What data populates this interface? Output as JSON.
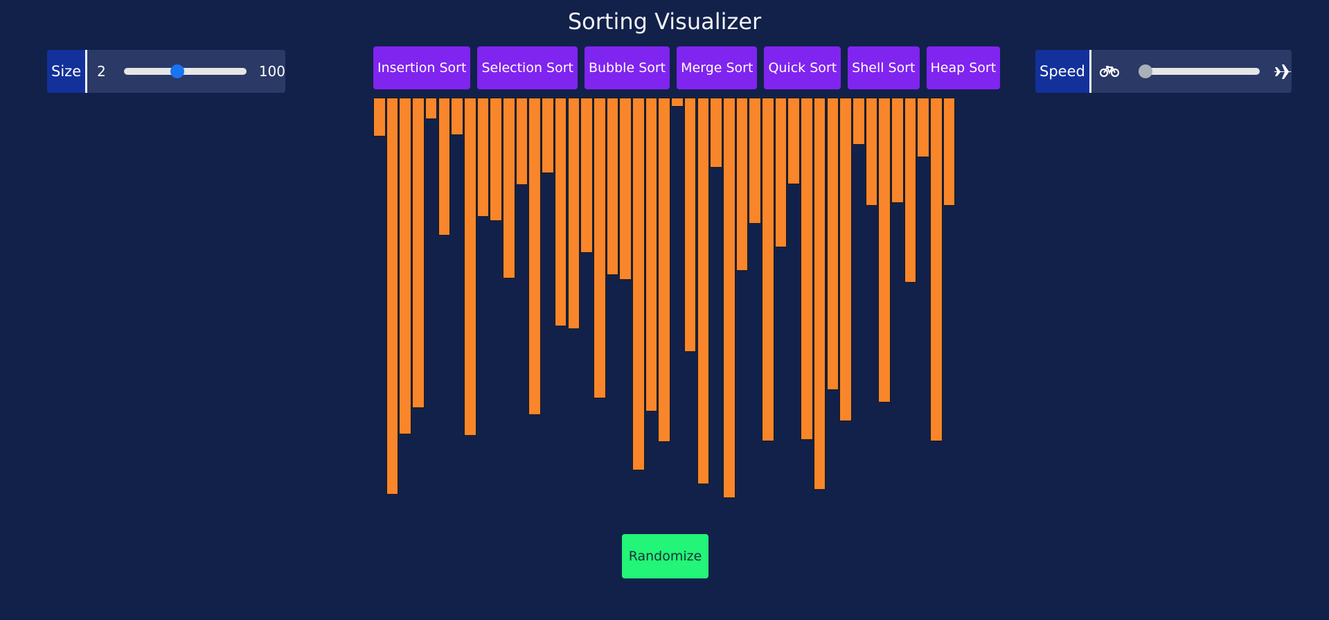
{
  "app": {
    "title": "Sorting Visualizer"
  },
  "size": {
    "label": "Size",
    "min": "2",
    "max": "100",
    "value": 45
  },
  "speed": {
    "label": "Speed",
    "value": 0,
    "slow_icon": "bicycle-icon",
    "fast_icon": "airplane-icon"
  },
  "algorithms": [
    "Insertion Sort",
    "Selection Sort",
    "Bubble Sort",
    "Merge Sort",
    "Quick Sort",
    "Shell Sort",
    "Heap Sort"
  ],
  "bars": [
    56,
    573,
    486,
    448,
    31,
    199,
    54,
    488,
    172,
    178,
    261,
    126,
    458,
    109,
    330,
    334,
    224,
    434,
    256,
    263,
    538,
    453,
    497,
    13,
    367,
    558,
    101,
    578,
    250,
    182,
    496,
    216,
    125,
    494,
    566,
    422,
    467,
    68,
    156,
    440,
    152,
    267,
    86,
    496,
    156
  ],
  "randomize": {
    "label": "Randomize"
  },
  "colors": {
    "background": "#12214a",
    "panel": "#2a3966",
    "label_bg": "#13319a",
    "algo_button": "#8024f0",
    "bar": "#f9862a",
    "randomize": "#22f577",
    "size_thumb": "#1a73f0",
    "speed_thumb": "#a8b0b8"
  }
}
